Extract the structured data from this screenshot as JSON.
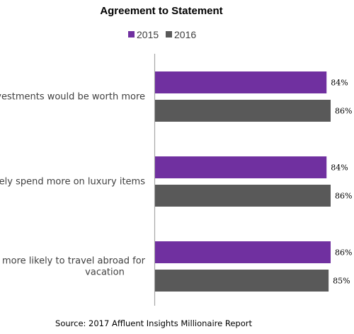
{
  "chart_data": {
    "type": "bar",
    "orientation": "horizontal",
    "title": "Agreement to Statement",
    "categories": [
      [
        "investments would be worth more"
      ],
      [
        "likely spend more on luxury items"
      ],
      [
        "am more likely to travel abroad for",
        "vacation"
      ]
    ],
    "series": [
      {
        "name": "2015",
        "color": "#7030a0",
        "values": [
          84,
          84,
          86
        ],
        "labels": [
          "84%",
          "84%",
          "86%"
        ]
      },
      {
        "name": "2016",
        "color": "#595959",
        "values": [
          86,
          86,
          85
        ],
        "labels": [
          "86%",
          "86%",
          "85%"
        ]
      }
    ],
    "xlim": [
      0,
      86
    ],
    "grid": false,
    "legend_position": "top",
    "source": "Source: 2017 Affluent Insights Millionaire Report"
  }
}
